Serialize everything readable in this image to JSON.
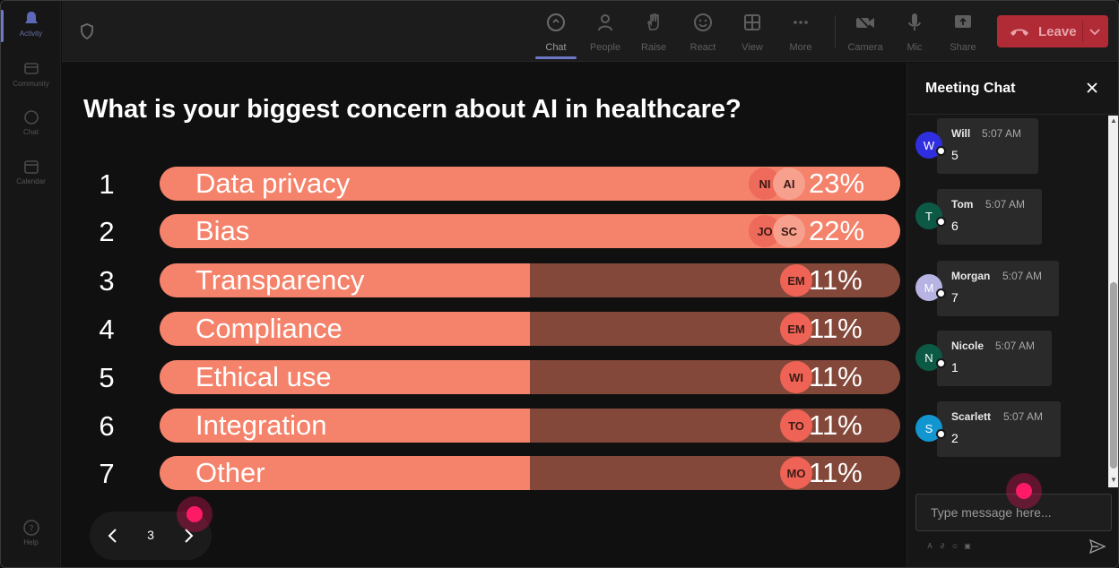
{
  "rail": {
    "items": [
      {
        "label": "Activity",
        "icon": "bell-icon"
      },
      {
        "label": "Community",
        "icon": "community-icon"
      },
      {
        "label": "Chat",
        "icon": "chat-icon"
      },
      {
        "label": "Calendar",
        "icon": "calendar-icon"
      },
      {
        "label": "Help",
        "icon": "help-icon"
      }
    ]
  },
  "topbar": {
    "buttons": [
      {
        "label": "Chat",
        "icon": "chat-bubble-icon"
      },
      {
        "label": "People",
        "icon": "people-icon"
      },
      {
        "label": "Raise",
        "icon": "hand-icon"
      },
      {
        "label": "React",
        "icon": "smiley-icon"
      },
      {
        "label": "View",
        "icon": "grid-icon"
      },
      {
        "label": "More",
        "icon": "more-icon"
      },
      {
        "label": "Camera",
        "icon": "camera-off-icon"
      },
      {
        "label": "Mic",
        "icon": "mic-icon"
      },
      {
        "label": "Share",
        "icon": "share-icon"
      }
    ],
    "leave_label": "Leave",
    "leave_color": "#b02b36"
  },
  "poll": {
    "question": "What is your biggest concern about AI in healthcare?",
    "rows": [
      {
        "num": "1",
        "label": "Data privacy",
        "pct": "23%",
        "fraction": 1.0,
        "avatars": [
          "NI",
          "AI"
        ]
      },
      {
        "num": "2",
        "label": "Bias",
        "pct": "22%",
        "fraction": 1.0,
        "avatars": [
          "JO",
          "SC"
        ]
      },
      {
        "num": "3",
        "label": "Transparency",
        "pct": "11%",
        "fraction": 0.5,
        "avatars": [
          "EM"
        ]
      },
      {
        "num": "4",
        "label": "Compliance",
        "pct": "11%",
        "fraction": 0.5,
        "avatars": [
          "EM"
        ]
      },
      {
        "num": "5",
        "label": "Ethical use",
        "pct": "11%",
        "fraction": 0.5,
        "avatars": [
          "WI"
        ]
      },
      {
        "num": "6",
        "label": "Integration",
        "pct": "11%",
        "fraction": 0.5,
        "avatars": [
          "TO"
        ]
      },
      {
        "num": "7",
        "label": "Other",
        "pct": "11%",
        "fraction": 0.5,
        "avatars": [
          "MO"
        ]
      }
    ],
    "bar_color": "#f5826a",
    "track_color": "#84483a",
    "page": "3"
  },
  "chat": {
    "title": "Meeting Chat",
    "messages": [
      {
        "initial": "W",
        "name": "Will",
        "time": "5:07 AM",
        "text": "5",
        "color": "#2f2fe0"
      },
      {
        "initial": "T",
        "name": "Tom",
        "time": "5:07 AM",
        "text": "6",
        "color": "#0c5a45"
      },
      {
        "initial": "M",
        "name": "Morgan",
        "time": "5:07 AM",
        "text": "7",
        "color": "#b7b3e3"
      },
      {
        "initial": "N",
        "name": "Nicole",
        "time": "5:07 AM",
        "text": "1",
        "color": "#0c5a45"
      },
      {
        "initial": "S",
        "name": "Scarlett",
        "time": "5:07 AM",
        "text": "2",
        "color": "#1296cf"
      }
    ],
    "input_placeholder": "Type message here..."
  }
}
